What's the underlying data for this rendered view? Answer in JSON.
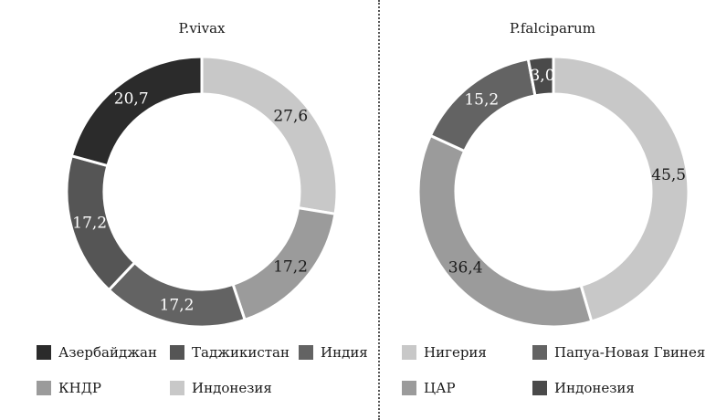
{
  "chart_data": [
    {
      "type": "pie",
      "title": "P.vivax",
      "slices": [
        {
          "label": "Индонезия",
          "value": 27.6,
          "display": "27,6",
          "color": "#c8c8c8"
        },
        {
          "label": "КНДР",
          "value": 17.2,
          "display": "17,2",
          "color": "#9b9b9b"
        },
        {
          "label": "Индия",
          "value": 17.2,
          "display": "17,2",
          "color": "#636363"
        },
        {
          "label": "Таджикистан",
          "value": 17.2,
          "display": "17,2",
          "color": "#555555"
        },
        {
          "label": "Азербайджан",
          "value": 20.7,
          "display": "20,7",
          "color": "#2b2b2b"
        }
      ],
      "legend": [
        {
          "label": "Азербайджан",
          "color": "#2b2b2b"
        },
        {
          "label": "Таджикистан",
          "color": "#555555"
        },
        {
          "label": "Индия",
          "color": "#636363"
        },
        {
          "label": "КНДР",
          "color": "#9b9b9b"
        },
        {
          "label": "Индонезия",
          "color": "#c8c8c8"
        }
      ]
    },
    {
      "type": "pie",
      "title": "P.falciparum",
      "slices": [
        {
          "label": "Нигерия",
          "value": 45.5,
          "display": "45,5",
          "color": "#c8c8c8"
        },
        {
          "label": "ЦАР",
          "value": 36.4,
          "display": "36,4",
          "color": "#9b9b9b"
        },
        {
          "label": "Папуа-Новая Гвинея",
          "value": 15.2,
          "display": "15,2",
          "color": "#636363"
        },
        {
          "label": "Индонезия",
          "value": 3.0,
          "display": "3,0",
          "color": "#4a4a4a"
        }
      ],
      "legend": [
        {
          "label": "Нигерия",
          "color": "#c8c8c8"
        },
        {
          "label": "Папуа-Новая Гвинея",
          "color": "#636363"
        },
        {
          "label": "ЦАР",
          "color": "#9b9b9b"
        },
        {
          "label": "Индонезия",
          "color": "#4a4a4a"
        }
      ]
    }
  ]
}
